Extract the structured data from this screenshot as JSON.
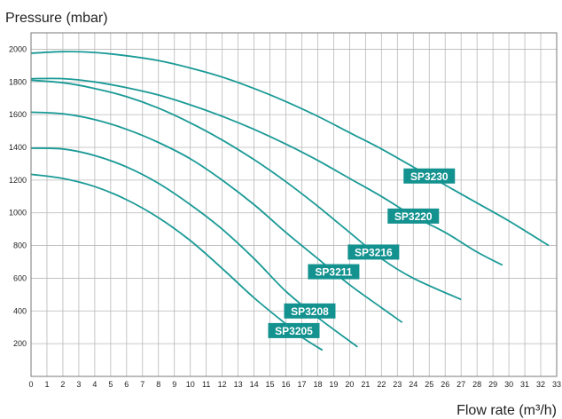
{
  "chart_data": {
    "type": "line",
    "ylabel": "Pressure (mbar)",
    "xlabel": "Flow rate (m³/h)",
    "xlim": [
      0,
      33
    ],
    "ylim": [
      0,
      2100
    ],
    "xticks": [
      0,
      1,
      2,
      3,
      4,
      5,
      6,
      7,
      8,
      9,
      10,
      11,
      12,
      13,
      14,
      15,
      16,
      17,
      18,
      19,
      20,
      21,
      22,
      23,
      24,
      25,
      26,
      27,
      28,
      29,
      30,
      31,
      32,
      33
    ],
    "yticks": [
      200,
      400,
      600,
      800,
      1000,
      1200,
      1400,
      1600,
      1800,
      2000
    ],
    "grid": true,
    "colors": {
      "curve": "#1a9a96",
      "label_bg": "#13928f",
      "label_text": "#ffffff"
    },
    "series": [
      {
        "name": "SP3205",
        "x": [
          0,
          2,
          4,
          6,
          8,
          10,
          12,
          14,
          16,
          17,
          18.3
        ],
        "y": [
          1235,
          1210,
          1160,
          1080,
          970,
          830,
          660,
          480,
          320,
          240,
          160
        ]
      },
      {
        "name": "SP3208",
        "x": [
          0,
          2,
          4,
          6,
          8,
          10,
          12,
          14,
          16,
          18,
          20.5
        ],
        "y": [
          1395,
          1390,
          1350,
          1280,
          1180,
          1050,
          900,
          720,
          520,
          360,
          180
        ]
      },
      {
        "name": "SP3211",
        "x": [
          0,
          2,
          4,
          6,
          8,
          10,
          12,
          14,
          16,
          18,
          20,
          22,
          23.3
        ],
        "y": [
          1615,
          1605,
          1570,
          1510,
          1430,
          1330,
          1200,
          1050,
          880,
          720,
          560,
          420,
          330
        ]
      },
      {
        "name": "SP3216",
        "x": [
          0,
          2,
          4,
          6,
          8,
          10,
          12,
          14,
          16,
          18,
          20,
          22,
          24,
          27
        ],
        "y": [
          1810,
          1795,
          1760,
          1710,
          1640,
          1550,
          1445,
          1325,
          1190,
          1040,
          880,
          720,
          600,
          470
        ]
      },
      {
        "name": "SP3220",
        "x": [
          0,
          2,
          4,
          6,
          8,
          10,
          12,
          14,
          16,
          18,
          20,
          22,
          24,
          26,
          28,
          29.6
        ],
        "y": [
          1820,
          1820,
          1800,
          1765,
          1720,
          1660,
          1590,
          1510,
          1420,
          1320,
          1210,
          1100,
          980,
          880,
          760,
          680
        ]
      },
      {
        "name": "SP3230",
        "x": [
          0,
          2,
          4,
          6,
          8,
          10,
          12,
          14,
          16,
          18,
          20,
          22,
          24,
          26,
          28,
          30,
          32.5
        ],
        "y": [
          1975,
          1985,
          1980,
          1960,
          1930,
          1885,
          1830,
          1760,
          1680,
          1590,
          1490,
          1390,
          1280,
          1170,
          1060,
          950,
          800
        ]
      }
    ]
  }
}
